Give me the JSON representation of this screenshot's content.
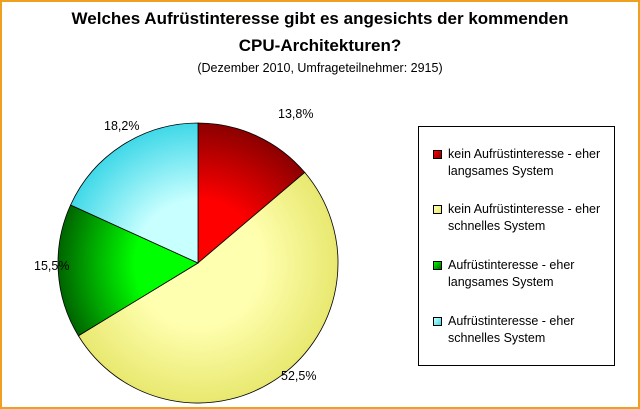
{
  "chart_data": {
    "type": "pie",
    "title_line1": "Welches Aufrüstinteresse gibt es angesichts der kommenden",
    "title_line2": "CPU-Architekturen?",
    "subtitle": "(Dezember 2010, Umfrageteilnehmer: 2915)",
    "categories": [
      "kein Aufrüstinteresse - eher langsames System",
      "kein Aufrüstinteresse - eher schnelles System",
      "Aufrüstinteresse - eher langsames System",
      "Aufrüstinteresse - eher schnelles System"
    ],
    "values": [
      13.8,
      52.5,
      15.5,
      18.2
    ],
    "value_labels": [
      "13,8%",
      "52,5%",
      "15,5%",
      "18,2%"
    ],
    "colors": [
      "#ff0000",
      "#ffffb0",
      "#00ff00",
      "#c8ffff"
    ],
    "gradient_dark": [
      "#8b0000",
      "#e8e870",
      "#006400",
      "#40d8e8"
    ],
    "start_angle": "12 o'clock",
    "direction": "clockwise",
    "legend_position": "right",
    "legend": [
      {
        "line1": "kein Aufrüstinteresse - eher",
        "line2": "langsames System"
      },
      {
        "line1": "kein Aufrüstinteresse - eher",
        "line2": "schnelles System"
      },
      {
        "line1": "Aufrüstinteresse - eher",
        "line2": "langsames System"
      },
      {
        "line1": "Aufrüstinteresse - eher",
        "line2": "schnelles System"
      }
    ]
  }
}
